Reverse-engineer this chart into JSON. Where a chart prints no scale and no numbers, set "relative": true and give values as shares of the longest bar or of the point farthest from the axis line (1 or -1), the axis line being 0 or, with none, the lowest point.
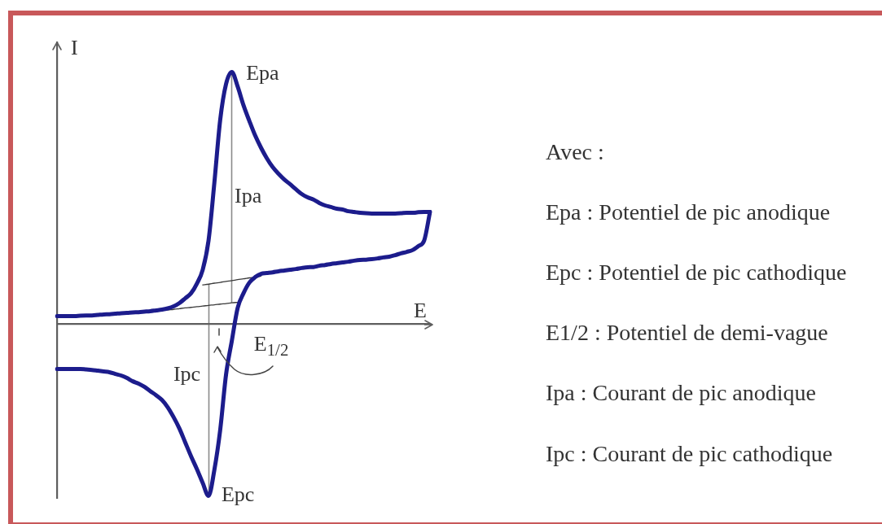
{
  "chart_data": {
    "type": "line",
    "relative": true,
    "xlabel": "E",
    "ylabel": "I",
    "categories": [
      null,
      null,
      null,
      null,
      null,
      null,
      null,
      null,
      null,
      null,
      null,
      null,
      null,
      null,
      null,
      null,
      null,
      null,
      null,
      null,
      null,
      null,
      null,
      null,
      null,
      null,
      null,
      null,
      null,
      null,
      null,
      null,
      null,
      null,
      null,
      null,
      null,
      null,
      null,
      null,
      null,
      null,
      null,
      null,
      null,
      null,
      null,
      null,
      null,
      null,
      null,
      null,
      null,
      null,
      null,
      null,
      null,
      null,
      null,
      null,
      null,
      null,
      null,
      null,
      null
    ],
    "series": [
      {
        "color": "#1c1c8c",
        "values": [
          0.032,
          0.032,
          0.032,
          0.032,
          0.034,
          0.035,
          0.035,
          0.037,
          0.039,
          0.04,
          0.042,
          0.044,
          0.045,
          0.047,
          0.048,
          0.05,
          0.052,
          0.055,
          0.058,
          0.063,
          0.071,
          0.084,
          0.103,
          0.123,
          0.161,
          0.216,
          0.332,
          0.561,
          0.81,
          0.952,
          1,
          0.942,
          0.868,
          0.806,
          0.748,
          0.7,
          0.658,
          0.623,
          0.597,
          0.574,
          0.555,
          0.535,
          0.516,
          0.503,
          0.494,
          0.481,
          0.471,
          0.465,
          0.458,
          0.455,
          0.448,
          0.445,
          0.442,
          0.44,
          0.439,
          0.439,
          0.439,
          0.439,
          0.439,
          0.44,
          0.442,
          0.442,
          0.444,
          0.445,
          0.445
        ]
      },
      {
        "color": "#1c1c8c",
        "values": [
          -0.177,
          -0.177,
          -0.177,
          -0.177,
          -0.177,
          -0.179,
          -0.181,
          -0.184,
          -0.187,
          -0.19,
          -0.197,
          -0.203,
          -0.213,
          -0.226,
          -0.235,
          -0.248,
          -0.265,
          -0.281,
          -0.3,
          -0.329,
          -0.368,
          -0.413,
          -0.468,
          -0.523,
          -0.574,
          -0.629,
          -0.68,
          -0.577,
          -0.419,
          -0.2,
          -0.065,
          0.065,
          0.123,
          0.165,
          0.187,
          0.2,
          0.203,
          0.206,
          0.21,
          0.213,
          0.216,
          0.219,
          0.223,
          0.226,
          0.227,
          0.232,
          0.235,
          0.239,
          0.242,
          0.245,
          0.248,
          0.252,
          0.255,
          0.256,
          0.258,
          0.261,
          0.265,
          0.268,
          0.274,
          0.281,
          0.287,
          0.294,
          0.31,
          0.332,
          0.445
        ]
      },
      {
        "color": "#3a3a3a",
        "values": [
          null,
          null,
          null,
          null,
          null,
          null,
          null,
          null,
          null,
          null,
          null,
          null,
          null,
          null,
          null,
          null,
          null,
          null,
          0.054,
          0.057,
          0.059,
          0.062,
          0.065,
          0.067,
          0.07,
          0.072,
          0.075,
          0.077,
          0.08,
          0.082,
          0.085,
          0.087,
          null,
          null,
          null,
          null,
          null,
          null,
          null,
          null,
          null,
          null,
          null,
          null,
          null,
          null,
          null,
          null,
          null,
          null,
          null,
          null,
          null,
          null,
          null,
          null,
          null,
          null,
          null,
          null,
          null,
          null,
          null,
          null,
          null
        ]
      },
      {
        "color": "#3a3a3a",
        "values": [
          null,
          null,
          null,
          null,
          null,
          null,
          null,
          null,
          null,
          null,
          null,
          null,
          null,
          null,
          null,
          null,
          null,
          null,
          null,
          null,
          null,
          null,
          null,
          null,
          null,
          0.156,
          0.159,
          0.163,
          0.166,
          0.17,
          0.173,
          0.177,
          0.18,
          0.184,
          0.187,
          0.191,
          null,
          null,
          null,
          null,
          null,
          null,
          null,
          null,
          null,
          null,
          null,
          null,
          null,
          null,
          null,
          null,
          null,
          null,
          null,
          null,
          null,
          null,
          null,
          null,
          null,
          null,
          null,
          null,
          null
        ]
      }
    ],
    "annotations": [
      "Epa",
      "Epc",
      "Ipa",
      "Ipc",
      "E$_{1/2}$",
      "Avec :",
      "Epa : Potentiel de pic anodique",
      "Epc : Potentiel de pic cathodique",
      "E1/2 : Potentiel de demi-vague",
      "Ipa : Courant de pic anodique",
      "Ipc : Courant de pic cathodique"
    ]
  }
}
